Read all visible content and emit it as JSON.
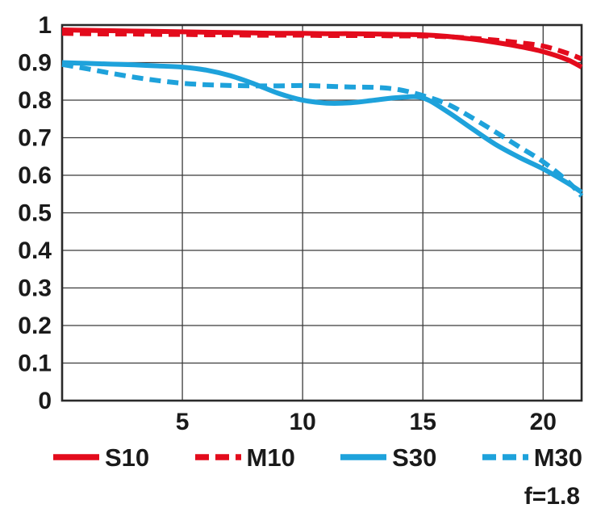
{
  "chart_data": {
    "type": "line",
    "title": "",
    "xlabel": "",
    "ylabel": "",
    "xlim": [
      0,
      21.6
    ],
    "ylim": [
      0,
      1
    ],
    "x_ticks": [
      5,
      10,
      15,
      20
    ],
    "x_tick_labels": [
      "5",
      "10",
      "15",
      "20"
    ],
    "y_ticks": [
      0,
      0.1,
      0.2,
      0.3,
      0.4,
      0.5,
      0.6,
      0.7,
      0.8,
      0.9,
      1
    ],
    "y_tick_labels": [
      "0",
      "0.1",
      "0.2",
      "0.3",
      "0.4",
      "0.5",
      "0.6",
      "0.7",
      "0.8",
      "0.9",
      "1"
    ],
    "grid": true,
    "legend_position": "bottom",
    "annotation": "f=1.8",
    "colors": {
      "red": "#e30b1c",
      "blue": "#1ea2db",
      "grid": "#3a3a3a",
      "border": "#2a2a2a",
      "text": "#1a1a1a"
    },
    "x": [
      0,
      1,
      2,
      3,
      4,
      5,
      6,
      7,
      8,
      9,
      10,
      11,
      12,
      13,
      14,
      15,
      16,
      17,
      18,
      19,
      20,
      21,
      21.6
    ],
    "series": [
      {
        "name": "S10",
        "color": "#e30b1c",
        "style": "solid",
        "values": [
          0.987,
          0.986,
          0.985,
          0.984,
          0.983,
          0.982,
          0.981,
          0.98,
          0.979,
          0.978,
          0.978,
          0.977,
          0.977,
          0.976,
          0.975,
          0.974,
          0.97,
          0.963,
          0.954,
          0.943,
          0.929,
          0.908,
          0.888
        ]
      },
      {
        "name": "M10",
        "color": "#e30b1c",
        "style": "dashed",
        "values": [
          0.978,
          0.977,
          0.976,
          0.976,
          0.975,
          0.975,
          0.974,
          0.974,
          0.973,
          0.973,
          0.973,
          0.972,
          0.972,
          0.972,
          0.971,
          0.971,
          0.969,
          0.965,
          0.96,
          0.953,
          0.944,
          0.925,
          0.91
        ]
      },
      {
        "name": "S30",
        "color": "#1ea2db",
        "style": "solid",
        "values": [
          0.9,
          0.898,
          0.896,
          0.894,
          0.891,
          0.888,
          0.88,
          0.865,
          0.843,
          0.818,
          0.8,
          0.792,
          0.793,
          0.8,
          0.807,
          0.806,
          0.77,
          0.726,
          0.683,
          0.648,
          0.617,
          0.58,
          0.555
        ]
      },
      {
        "name": "M30",
        "color": "#1ea2db",
        "style": "dashed",
        "values": [
          0.895,
          0.884,
          0.872,
          0.861,
          0.852,
          0.845,
          0.841,
          0.839,
          0.838,
          0.838,
          0.839,
          0.837,
          0.835,
          0.834,
          0.828,
          0.812,
          0.79,
          0.755,
          0.716,
          0.676,
          0.636,
          0.585,
          0.545
        ]
      }
    ]
  },
  "legend": {
    "items": [
      {
        "label": "S10",
        "color": "#e30b1c",
        "style": "solid"
      },
      {
        "label": "M10",
        "color": "#e30b1c",
        "style": "dashed"
      },
      {
        "label": "S30",
        "color": "#1ea2db",
        "style": "solid"
      },
      {
        "label": "M30",
        "color": "#1ea2db",
        "style": "dashed"
      }
    ]
  }
}
